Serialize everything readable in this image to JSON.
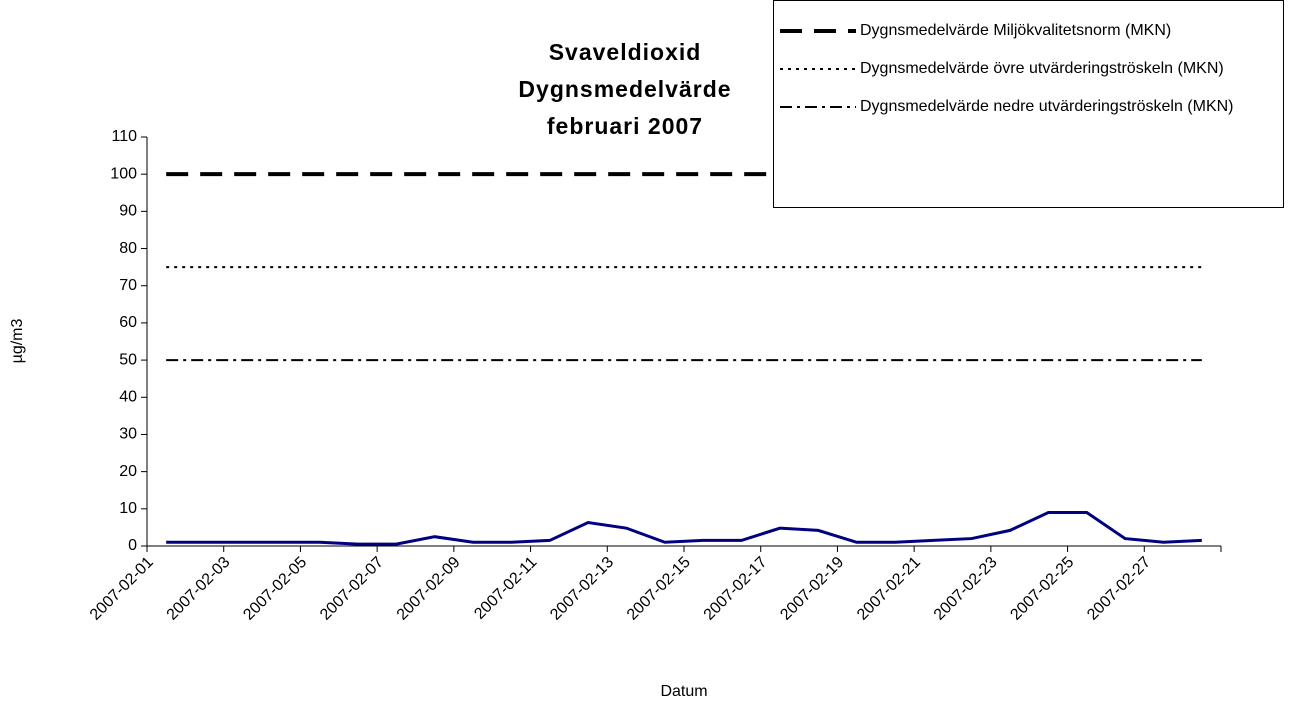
{
  "chart_data": {
    "type": "line",
    "title": "Svaveldioxid Dygnsmedelvärde februari 2007",
    "y_label": "µg/m3",
    "x_label": "Datum",
    "categories": [
      "2007-02-01",
      null,
      "2007-02-03",
      null,
      "2007-02-05",
      null,
      "2007-02-07",
      null,
      "2007-02-09",
      null,
      "2007-02-11",
      null,
      "2007-02-13",
      null,
      "2007-02-15",
      null,
      "2007-02-17",
      null,
      "2007-02-19",
      null,
      "2007-02-21",
      null,
      "2007-02-23",
      null,
      "2007-02-25",
      null,
      "2007-02-27",
      null
    ],
    "ylim": [
      0,
      110
    ],
    "yticks": [
      0,
      10,
      20,
      30,
      40,
      50,
      60,
      70,
      80,
      90,
      100,
      110
    ],
    "legend": "top-right",
    "series": [
      {
        "color": "#000080",
        "style": "solid",
        "values": [
          1,
          1,
          1,
          1,
          1,
          0.5,
          0.5,
          2.5,
          1,
          1,
          1.5,
          6.3,
          4.8,
          1,
          1.5,
          1.5,
          4.8,
          4.2,
          1,
          1,
          1.5,
          2,
          4.2,
          9,
          9,
          2,
          1,
          1.5
        ]
      },
      {
        "name": "Dygnsmedelvärde Miljökvalitetsnorm (MKN)",
        "color": "#000000",
        "style": "dashed",
        "values": [
          100,
          100,
          100,
          100,
          100,
          100,
          100,
          100,
          100,
          100,
          100,
          100,
          100,
          100,
          100,
          100,
          100,
          100,
          100,
          100,
          100,
          100,
          100,
          100,
          100,
          100,
          100,
          100
        ]
      },
      {
        "name": "Dygnsmedelvärde övre utvärderingströskeln (MKN)",
        "color": "#000000",
        "style": "dotted",
        "values": [
          75,
          75,
          75,
          75,
          75,
          75,
          75,
          75,
          75,
          75,
          75,
          75,
          75,
          75,
          75,
          75,
          75,
          75,
          75,
          75,
          75,
          75,
          75,
          75,
          75,
          75,
          75,
          75
        ]
      },
      {
        "name": "Dygnsmedelvärde nedre utvärderingströskeln (MKN)",
        "color": "#000000",
        "style": "dashdot",
        "values": [
          50,
          50,
          50,
          50,
          50,
          50,
          50,
          50,
          50,
          50,
          50,
          50,
          50,
          50,
          50,
          50,
          50,
          50,
          50,
          50,
          50,
          50,
          50,
          50,
          50,
          50,
          50,
          50
        ]
      }
    ]
  }
}
